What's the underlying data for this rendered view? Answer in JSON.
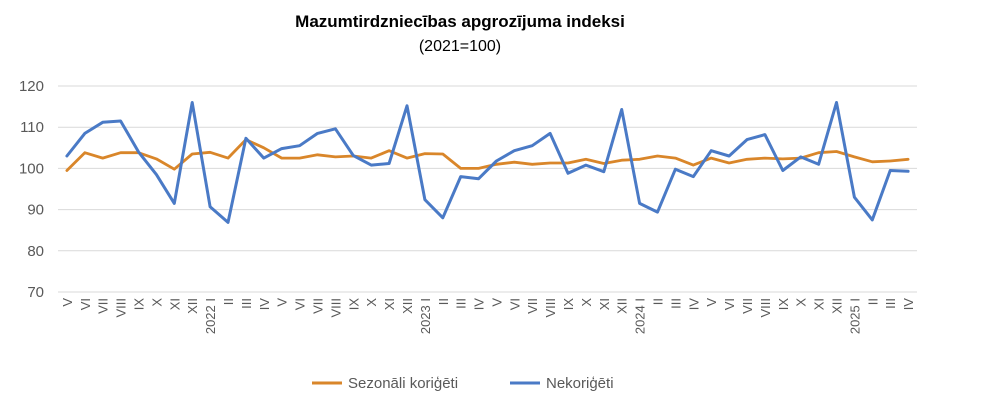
{
  "chart_data": {
    "type": "line",
    "title": "Mazumtirdzniecības apgrozījuma indeksi",
    "subtitle": "(2021=100)",
    "ylim": [
      70,
      120
    ],
    "yticks": [
      "70",
      "80",
      "90",
      "100",
      "110",
      "120"
    ],
    "grid": true,
    "legend_position": "bottom",
    "categories": [
      "V",
      "VI",
      "VII",
      "VIII",
      "IX",
      "X",
      "XI",
      "XII",
      "2022 I",
      "II",
      "III",
      "IV",
      "V",
      "VI",
      "VII",
      "VIII",
      "IX",
      "X",
      "XI",
      "XII",
      "2023 I",
      "II",
      "III",
      "IV",
      "V",
      "VI",
      "VII",
      "VIII",
      "IX",
      "X",
      "XI",
      "XII",
      "2024 I",
      "II",
      "III",
      "IV",
      "V",
      "VI",
      "VII",
      "VIII",
      "IX",
      "X",
      "XI",
      "XII",
      "2025 I",
      "II",
      "III",
      "IV"
    ],
    "series": [
      {
        "name": "Sezonāli koriģēti",
        "color": "#d9862a",
        "values": [
          99.5,
          103.8,
          102.5,
          103.8,
          103.8,
          102.3,
          99.8,
          103.5,
          103.9,
          102.5,
          107.0,
          105.0,
          102.5,
          102.5,
          103.3,
          102.8,
          103.0,
          102.5,
          104.3,
          102.5,
          103.6,
          103.5,
          100.0,
          100.0,
          101.0,
          101.5,
          101.0,
          101.3,
          101.3,
          102.2,
          101.2,
          102.0,
          102.2,
          103.0,
          102.5,
          100.8,
          102.5,
          101.3,
          102.2,
          102.5,
          102.3,
          102.5,
          103.8,
          104.1,
          102.8,
          101.6,
          101.8,
          102.2
        ]
      },
      {
        "name": "Nekoriģēti",
        "color": "#4a7ac6",
        "values": [
          103.0,
          108.5,
          111.2,
          111.5,
          104.0,
          98.5,
          91.5,
          116.0,
          90.7,
          86.9,
          107.3,
          102.5,
          104.8,
          105.5,
          108.5,
          109.6,
          103.1,
          100.8,
          101.2,
          115.2,
          92.4,
          88.0,
          98.0,
          97.5,
          101.8,
          104.3,
          105.5,
          108.5,
          98.8,
          100.8,
          99.2,
          114.3,
          91.5,
          89.4,
          99.8,
          98.0,
          104.3,
          103.0,
          107.0,
          108.2,
          99.5,
          102.8,
          101.0,
          116.0,
          93.0,
          87.5,
          99.5,
          99.3
        ]
      }
    ]
  }
}
